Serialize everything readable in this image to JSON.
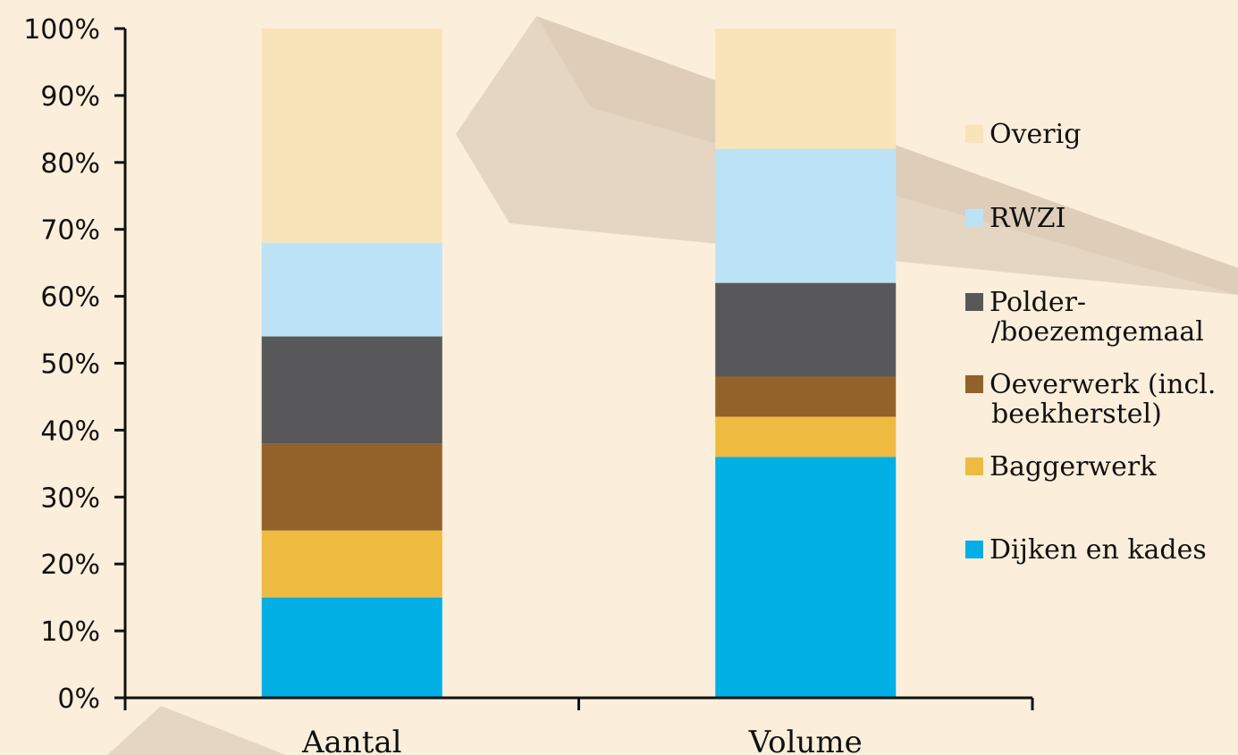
{
  "chart_data": {
    "type": "bar",
    "stacked": true,
    "normalized": true,
    "categories": [
      "Aantal",
      "Volume"
    ],
    "ylim": [
      0,
      100
    ],
    "yticks": [
      "0%",
      "10%",
      "20%",
      "30%",
      "40%",
      "50%",
      "60%",
      "70%",
      "80%",
      "90%",
      "100%"
    ],
    "grid": false,
    "legend_position": "right",
    "series": [
      {
        "name": "Dijken en kades",
        "values": [
          15,
          36
        ],
        "color": "#00b0e4"
      },
      {
        "name": "Baggerwerk",
        "values": [
          10,
          6
        ],
        "color": "#efba40"
      },
      {
        "name": "Oeverwerk (incl. beekherstel)",
        "values": [
          13,
          6
        ],
        "color": "#93622a"
      },
      {
        "name": "Polder-/boezemgemaal",
        "values": [
          16,
          14
        ],
        "color": "#58585a"
      },
      {
        "name": "RWZI",
        "values": [
          14,
          20
        ],
        "color": "#bce3f5"
      },
      {
        "name": "Overig",
        "values": [
          32,
          18
        ],
        "color": "#f9e3b8"
      }
    ],
    "legend": [
      {
        "lines": [
          "Overig"
        ],
        "series": "Overig"
      },
      {
        "lines": [
          "RWZI"
        ],
        "series": "RWZI"
      },
      {
        "lines": [
          "Polder-",
          "/boezemgemaal"
        ],
        "series": "Polder-/boezemgemaal"
      },
      {
        "lines": [
          "Oeverwerk (incl.",
          "beekherstel)"
        ],
        "series": "Oeverwerk (incl. beekherstel)"
      },
      {
        "lines": [
          "Baggerwerk"
        ],
        "series": "Baggerwerk"
      },
      {
        "lines": [
          "Dijken en kades"
        ],
        "series": "Dijken en kades"
      }
    ]
  }
}
